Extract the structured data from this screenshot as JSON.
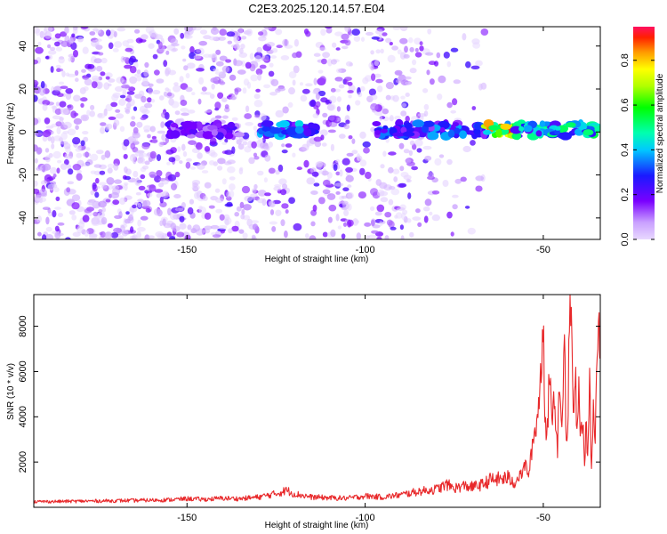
{
  "title": "C2E3.2025.120.14.57.E04",
  "chart_data": [
    {
      "type": "heatmap",
      "xlabel": "Height of straight line (km)",
      "ylabel": "Frequency (Hz)",
      "xlim": [
        -193,
        -34
      ],
      "ylim": [
        -50,
        49
      ],
      "xticks": [
        -150,
        -100,
        -50
      ],
      "yticks": [
        -40,
        -20,
        0,
        20,
        40
      ],
      "colorbar": {
        "label": "Normalized spectral amplitude",
        "range": [
          0,
          0.95
        ],
        "ticks": [
          "0.0",
          "0.2",
          "0.4",
          "0.6",
          "0.8"
        ],
        "colormap": "rainbow"
      },
      "signal_band_freq_hz": 1,
      "signal_segments": [
        {
          "x_start": -155,
          "x_end": -135,
          "amplitude": 0.25
        },
        {
          "x_start": -130,
          "x_end": -114,
          "amplitude": 0.45
        },
        {
          "x_start": -97,
          "x_end": -66,
          "amplitude": 0.4
        },
        {
          "x_start": -66,
          "x_end": -58,
          "amplitude": 0.95
        },
        {
          "x_start": -58,
          "x_end": -34,
          "amplitude": 0.6
        }
      ]
    },
    {
      "type": "line",
      "xlabel": "Height of straight line (km)",
      "ylabel": "SNR (10 * v/v)",
      "xlim": [
        -193,
        -34
      ],
      "ylim": [
        0,
        9400
      ],
      "xticks": [
        -150,
        -100,
        -50
      ],
      "yticks": [
        2000,
        4000,
        6000,
        8000
      ],
      "series": [
        {
          "color": "#e8282a",
          "x": [
            -193,
            -185,
            -175,
            -165,
            -155,
            -150,
            -145,
            -140,
            -135,
            -130,
            -125,
            -122,
            -120,
            -115,
            -110,
            -105,
            -100,
            -95,
            -90,
            -85,
            -80,
            -77,
            -75,
            -72,
            -70,
            -67,
            -65,
            -62,
            -60,
            -58,
            -56,
            -55,
            -54,
            -53,
            -52,
            -51,
            -50,
            -49.5,
            -49,
            -48.5,
            -48,
            -47.5,
            -47,
            -46.5,
            -46,
            -45.5,
            -45,
            -44.5,
            -44,
            -43.5,
            -43,
            -42.5,
            -42,
            -41.5,
            -41,
            -40.5,
            -40,
            -39.5,
            -39,
            -38.5,
            -38,
            -37.5,
            -37,
            -36.5,
            -36,
            -35.5,
            -35,
            -34.5,
            -34
          ],
          "y": [
            250,
            260,
            280,
            300,
            330,
            380,
            350,
            400,
            380,
            450,
            600,
            750,
            600,
            450,
            420,
            400,
            500,
            450,
            550,
            700,
            800,
            1000,
            850,
            950,
            900,
            1000,
            1200,
            1250,
            1300,
            1100,
            1500,
            1900,
            1400,
            2900,
            3600,
            5000,
            8500,
            4000,
            2700,
            5000,
            6400,
            3000,
            5500,
            4000,
            2500,
            6200,
            3500,
            5000,
            7000,
            2300,
            4800,
            9400,
            7500,
            3500,
            6000,
            2800,
            5200,
            3100,
            4200,
            1800,
            3500,
            2300,
            5900,
            1500,
            4500,
            2800,
            6200,
            7600,
            7500
          ]
        }
      ]
    }
  ]
}
